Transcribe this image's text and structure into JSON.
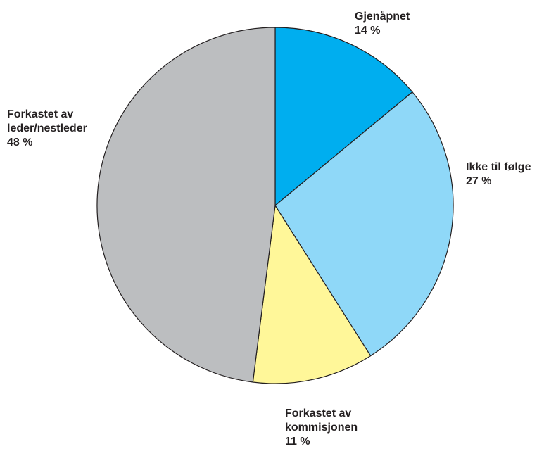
{
  "chart_data": {
    "type": "pie",
    "slices": [
      {
        "label_lines": [
          "Gjenåpnet"
        ],
        "value_label": "14 %",
        "value": 14,
        "color": "#00aeef"
      },
      {
        "label_lines": [
          "Ikke til følge"
        ],
        "value_label": "27 %",
        "value": 27,
        "color": "#8fd8f8"
      },
      {
        "label_lines": [
          "Forkastet av",
          "kommisjonen"
        ],
        "value_label": "11 %",
        "value": 11,
        "color": "#fff799"
      },
      {
        "label_lines": [
          "Forkastet av",
          "leder/nestleder"
        ],
        "value_label": "48 %",
        "value": 48,
        "color": "#bcbec0"
      }
    ],
    "title": "",
    "start": "12 o'clock",
    "direction": "clockwise",
    "legend": "none"
  }
}
